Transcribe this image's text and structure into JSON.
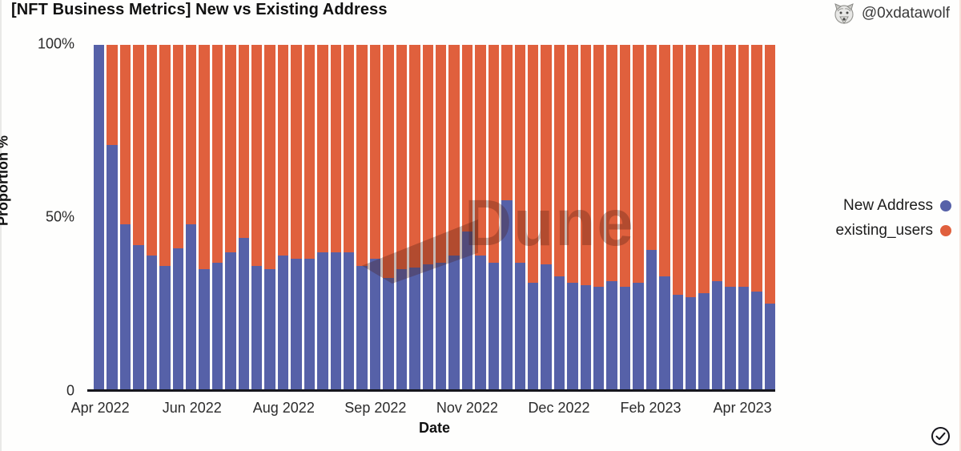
{
  "header": {
    "title": "[NFT Business Metrics] New vs Existing Address",
    "author_handle": "@0xdatawolf"
  },
  "chart_data": {
    "type": "bar",
    "stacked": true,
    "orientation": "vertical",
    "title": "[NFT Business Metrics] New vs Existing Address",
    "xlabel": "Date",
    "ylabel": "Proportion %",
    "ylim": [
      0,
      100
    ],
    "y_tick_labels": [
      "100%",
      "50%",
      "0"
    ],
    "grid": false,
    "legend_position": "right",
    "bar_count": 52,
    "x_interval": "weekly",
    "x_tick_bar_indices": [
      0,
      7,
      14,
      21,
      28,
      35,
      42,
      49
    ],
    "x_tick_labels": [
      "Apr 2022",
      "Jun 2022",
      "Aug 2022",
      "Sep 2022",
      "Nov 2022",
      "Dec 2022",
      "Feb 2023",
      "Apr 2023"
    ],
    "series": [
      {
        "name": "New Address",
        "color": "#5661A8",
        "values": [
          100,
          71,
          48,
          42,
          39,
          36,
          41,
          48,
          35,
          37,
          40,
          44,
          36,
          35,
          39,
          38,
          38,
          40,
          40,
          40,
          36,
          38,
          32.5,
          35,
          35.5,
          36.5,
          37,
          39,
          46,
          39,
          37,
          55,
          37,
          31,
          36.5,
          33,
          31,
          30.5,
          30,
          31.5,
          30,
          31,
          40.5,
          33,
          27.5,
          27,
          28,
          31.5,
          30,
          30,
          28.5,
          25
        ]
      },
      {
        "name": "existing_users",
        "color": "#E0603D",
        "values": [
          0,
          29,
          52,
          58,
          61,
          64,
          59,
          52,
          65,
          63,
          60,
          56,
          64,
          65,
          61,
          62,
          62,
          60,
          60,
          60,
          64,
          62,
          67.5,
          65,
          64.5,
          63.5,
          63,
          61,
          54,
          61,
          63,
          45,
          63,
          69,
          63.5,
          67,
          69,
          69.5,
          70,
          68.5,
          70,
          69,
          59.5,
          67,
          72.5,
          73,
          72,
          68.5,
          70,
          70,
          71.5,
          75
        ]
      }
    ]
  },
  "axes": {
    "y_title": "Proportion %",
    "x_title": "Date",
    "y_tick_100": "100%",
    "y_tick_50": "50%",
    "y_tick_0": "0"
  },
  "legend": {
    "items": [
      {
        "label": "New Address",
        "color": "#5661A8"
      },
      {
        "label": "existing_users",
        "color": "#E0603D"
      }
    ]
  },
  "watermark": {
    "text": "Dune"
  },
  "icons": {
    "author_avatar": "wolf-avatar",
    "bottom_right": "check-circle"
  }
}
